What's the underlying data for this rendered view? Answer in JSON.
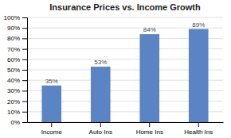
{
  "chart_data": {
    "type": "bar",
    "title": "Insurance Prices vs. Income Growth",
    "categories": [
      "Income",
      "Auto Ins",
      "Home Ins",
      "Health Ins"
    ],
    "values": [
      35,
      53,
      84,
      89
    ],
    "value_labels": [
      "35%",
      "53%",
      "84%",
      "89%"
    ],
    "data_labels": true,
    "color": "#5B84C4",
    "ylim": [
      0,
      100
    ],
    "yticks": [
      {
        "value": 0,
        "label": "0%"
      },
      {
        "value": 10,
        "label": "10%"
      },
      {
        "value": 20,
        "label": "20%"
      },
      {
        "value": 30,
        "label": "30%"
      },
      {
        "value": 40,
        "label": "40%"
      },
      {
        "value": 50,
        "label": "50%"
      },
      {
        "value": 60,
        "label": "60%"
      },
      {
        "value": 70,
        "label": "70%"
      },
      {
        "value": 80,
        "label": "80%"
      },
      {
        "value": 90,
        "label": "90%"
      },
      {
        "value": 100,
        "label": "100%"
      }
    ],
    "grid": true
  }
}
